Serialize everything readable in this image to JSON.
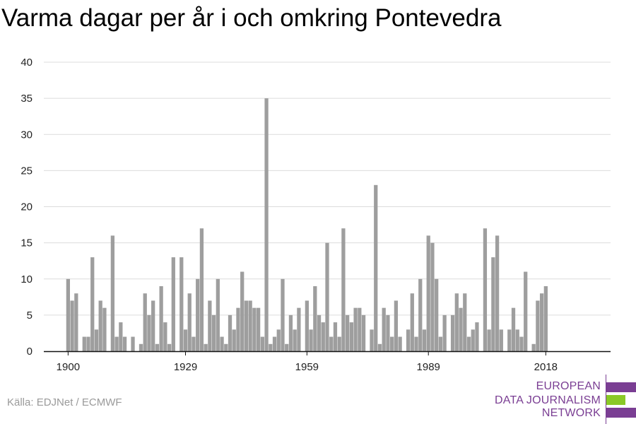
{
  "chart_data": {
    "type": "bar",
    "title": "Varma dagar per år i och omkring Pontevedra",
    "xlabel": "",
    "ylabel": "",
    "ylim": [
      0,
      40
    ],
    "yticks": [
      0,
      5,
      10,
      15,
      20,
      25,
      30,
      35,
      40
    ],
    "xticks": [
      1900,
      1929,
      1959,
      1989,
      2018
    ],
    "x_range": [
      1894,
      2034
    ],
    "grid": true,
    "bar_color": "#9e9e9e",
    "x": [
      1900,
      1901,
      1902,
      1903,
      1904,
      1905,
      1906,
      1907,
      1908,
      1909,
      1910,
      1911,
      1912,
      1913,
      1914,
      1915,
      1916,
      1917,
      1918,
      1919,
      1920,
      1921,
      1922,
      1923,
      1924,
      1925,
      1926,
      1927,
      1928,
      1929,
      1930,
      1931,
      1932,
      1933,
      1934,
      1935,
      1936,
      1937,
      1938,
      1939,
      1940,
      1941,
      1942,
      1943,
      1944,
      1945,
      1946,
      1947,
      1948,
      1949,
      1950,
      1951,
      1952,
      1953,
      1954,
      1955,
      1956,
      1957,
      1958,
      1959,
      1960,
      1961,
      1962,
      1963,
      1964,
      1965,
      1966,
      1967,
      1968,
      1969,
      1970,
      1971,
      1972,
      1973,
      1974,
      1975,
      1976,
      1977,
      1978,
      1979,
      1980,
      1981,
      1982,
      1983,
      1984,
      1985,
      1986,
      1987,
      1988,
      1989,
      1990,
      1991,
      1992,
      1993,
      1994,
      1995,
      1996,
      1997,
      1998,
      1999,
      2000,
      2001,
      2002,
      2003,
      2004,
      2005,
      2006,
      2007,
      2008,
      2009,
      2010,
      2011,
      2012,
      2013,
      2014,
      2015,
      2016,
      2017,
      2018
    ],
    "values": [
      10,
      7,
      8,
      0,
      2,
      2,
      13,
      3,
      7,
      6,
      0,
      16,
      2,
      4,
      2,
      0,
      2,
      0,
      1,
      8,
      5,
      7,
      1,
      9,
      4,
      1,
      13,
      0,
      13,
      3,
      8,
      2,
      10,
      17,
      1,
      7,
      5,
      10,
      2,
      1,
      5,
      3,
      6,
      11,
      7,
      7,
      6,
      6,
      2,
      35,
      1,
      2,
      3,
      10,
      1,
      5,
      3,
      6,
      0,
      7,
      3,
      9,
      5,
      4,
      15,
      2,
      4,
      2,
      17,
      5,
      4,
      6,
      6,
      5,
      0,
      3,
      23,
      1,
      6,
      5,
      2,
      7,
      2,
      0,
      3,
      8,
      2,
      10,
      3,
      16,
      15,
      10,
      2,
      5,
      0,
      5,
      8,
      6,
      8,
      2,
      3,
      4,
      0,
      17,
      3,
      13,
      16,
      3,
      0,
      3,
      6,
      3,
      2,
      11,
      0,
      1,
      7,
      8,
      9
    ]
  },
  "source": "Källa: EDJNet / ECMWF",
  "logo": {
    "line1": "EUROPEAN",
    "line2": "DATA JOURNALISM",
    "line3": "NETWORK",
    "color_purple": "#7a3e93",
    "color_green": "#8ac926"
  }
}
